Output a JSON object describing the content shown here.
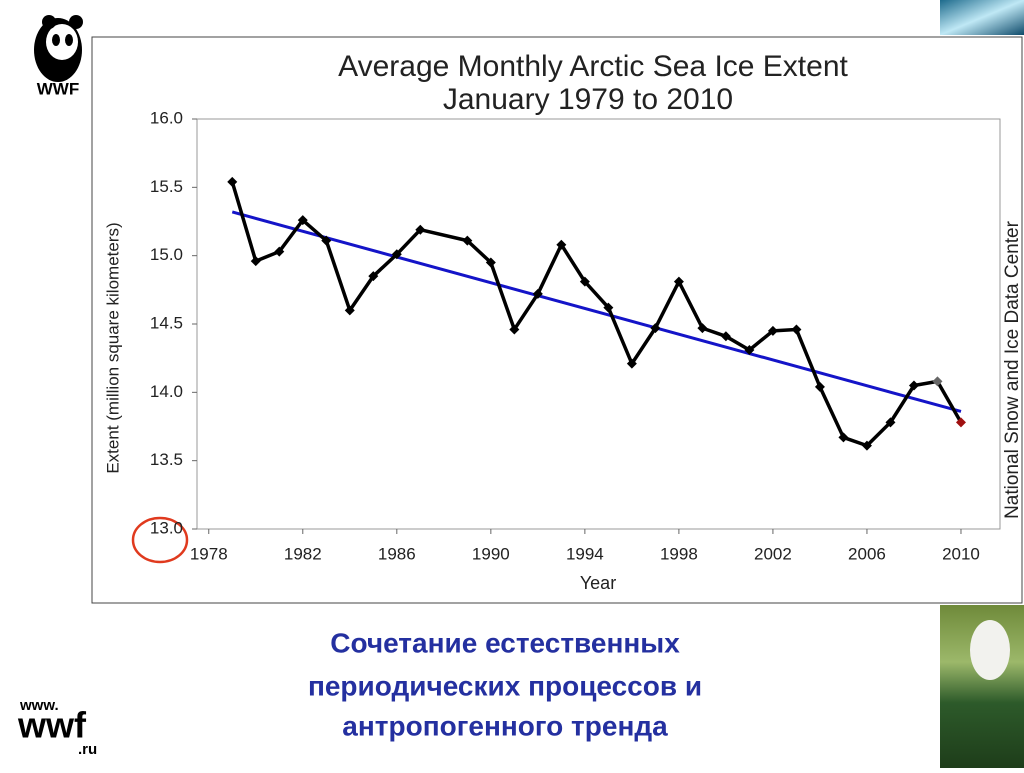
{
  "chart_data": {
    "type": "line",
    "title": "Average Monthly Arctic Sea Ice Extent",
    "subtitle": "January 1979 to 2010",
    "xlabel": "Year",
    "ylabel": "Extent (million square kilometers)",
    "source": "National Snow and Ice Data Center",
    "x": [
      1979,
      1980,
      1981,
      1982,
      1983,
      1984,
      1985,
      1986,
      1987,
      1989,
      1990,
      1991,
      1992,
      1993,
      1994,
      1995,
      1996,
      1997,
      1998,
      1999,
      2000,
      2001,
      2002,
      2003,
      2004,
      2005,
      2006,
      2007,
      2008,
      2009,
      2010
    ],
    "series": [
      {
        "color": "#000000",
        "values": [
          15.54,
          14.96,
          15.03,
          15.26,
          15.11,
          14.6,
          14.85,
          15.01,
          15.19,
          15.11,
          14.95,
          14.46,
          14.72,
          15.08,
          14.81,
          14.62,
          14.21,
          14.47,
          14.81,
          14.47,
          14.41,
          14.31,
          14.45,
          14.46,
          14.04,
          13.67,
          13.61,
          13.78,
          14.05,
          14.08,
          13.78
        ],
        "marker_colors": [
          "#000000",
          "#000000",
          "#000000",
          "#000000",
          "#000000",
          "#000000",
          "#000000",
          "#000000",
          "#000000",
          "#000000",
          "#000000",
          "#000000",
          "#000000",
          "#000000",
          "#000000",
          "#000000",
          "#000000",
          "#000000",
          "#000000",
          "#000000",
          "#000000",
          "#000000",
          "#000000",
          "#000000",
          "#000000",
          "#000000",
          "#000000",
          "#000000",
          "#000000",
          "#666666",
          "#a01010"
        ]
      }
    ],
    "trend": {
      "x": [
        1979,
        2010
      ],
      "values": [
        15.32,
        13.86
      ],
      "color": "#1414c8"
    },
    "xlim": [
      1977.5,
      2011.66
    ],
    "ylim": [
      13,
      16
    ],
    "xticks": [
      1978,
      1982,
      1986,
      1990,
      1994,
      1998,
      2002,
      2006,
      2010
    ],
    "yticks": [
      {
        "value": 13,
        "label": "13.0"
      },
      13.5,
      {
        "value": 14,
        "label": "14.0"
      },
      14.5,
      {
        "value": 15,
        "label": "15.0"
      },
      15.5,
      {
        "value": 16,
        "label": "16.0"
      }
    ],
    "grid": false
  },
  "logo": {
    "text": "WWF"
  },
  "footer": {
    "prefix": "www.",
    "name": "wwf",
    "suffix": ".ru"
  },
  "caption": [
    "Сочетание естественных",
    "периодических  процессов и",
    "антропогенного тренда"
  ]
}
